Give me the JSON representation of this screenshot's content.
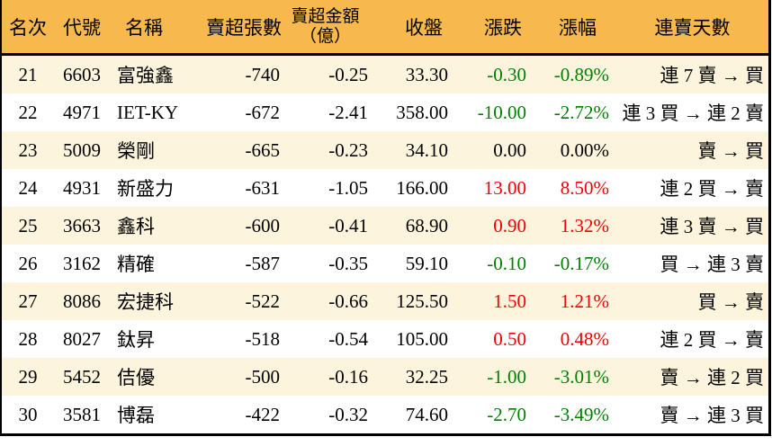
{
  "colors": {
    "header_bg": "#F7B94D",
    "row_alt_bg": "#FCF4DC",
    "row_bg": "#FFFFFF",
    "border": "#000000",
    "text": "#000000",
    "up_red": "#F00000",
    "down_green": "#008000"
  },
  "header": {
    "rank": "名次",
    "code": "代號",
    "name": "名稱",
    "volume": "賣超張數",
    "amount_line1": "賣超金額",
    "amount_line2": "（億）",
    "close": "收盤",
    "change": "漲跌",
    "pct": "漲幅",
    "streak": "連賣天數"
  },
  "chart_data": {
    "type": "table",
    "columns": [
      "名次",
      "代號",
      "名稱",
      "賣超張數",
      "賣超金額（億）",
      "收盤",
      "漲跌",
      "漲幅",
      "連賣天數"
    ],
    "rows": [
      [
        "21",
        "6603",
        "富強鑫",
        "-740",
        "-0.25",
        "33.30",
        "-0.30",
        "-0.89%",
        "連 7 賣 → 買"
      ],
      [
        "22",
        "4971",
        "IET-KY",
        "-672",
        "-2.41",
        "358.00",
        "-10.00",
        "-2.72%",
        "連 3 買 → 連 2 賣"
      ],
      [
        "23",
        "5009",
        "榮剛",
        "-665",
        "-0.23",
        "34.10",
        "0.00",
        "0.00%",
        "賣 → 買"
      ],
      [
        "24",
        "4931",
        "新盛力",
        "-631",
        "-1.05",
        "166.00",
        "13.00",
        "8.50%",
        "連 2 買 → 賣"
      ],
      [
        "25",
        "3663",
        "鑫科",
        "-600",
        "-0.41",
        "68.90",
        "0.90",
        "1.32%",
        "連 3 賣 → 買"
      ],
      [
        "26",
        "3162",
        "精確",
        "-587",
        "-0.35",
        "59.10",
        "-0.10",
        "-0.17%",
        "買 → 連 3 賣"
      ],
      [
        "27",
        "8086",
        "宏捷科",
        "-522",
        "-0.66",
        "125.50",
        "1.50",
        "1.21%",
        "買 → 賣"
      ],
      [
        "28",
        "8027",
        "鈦昇",
        "-518",
        "-0.54",
        "105.00",
        "0.50",
        "0.48%",
        "連 2 買 → 賣"
      ],
      [
        "29",
        "5452",
        "佶優",
        "-500",
        "-0.16",
        "32.25",
        "-1.00",
        "-3.01%",
        "賣 → 連 2 買"
      ],
      [
        "30",
        "3581",
        "博磊",
        "-422",
        "-0.32",
        "74.60",
        "-2.70",
        "-3.49%",
        "賣 → 連 3 買"
      ]
    ],
    "row_trends": [
      "down",
      "down",
      "flat",
      "up",
      "up",
      "down",
      "up",
      "up",
      "down",
      "down"
    ]
  }
}
